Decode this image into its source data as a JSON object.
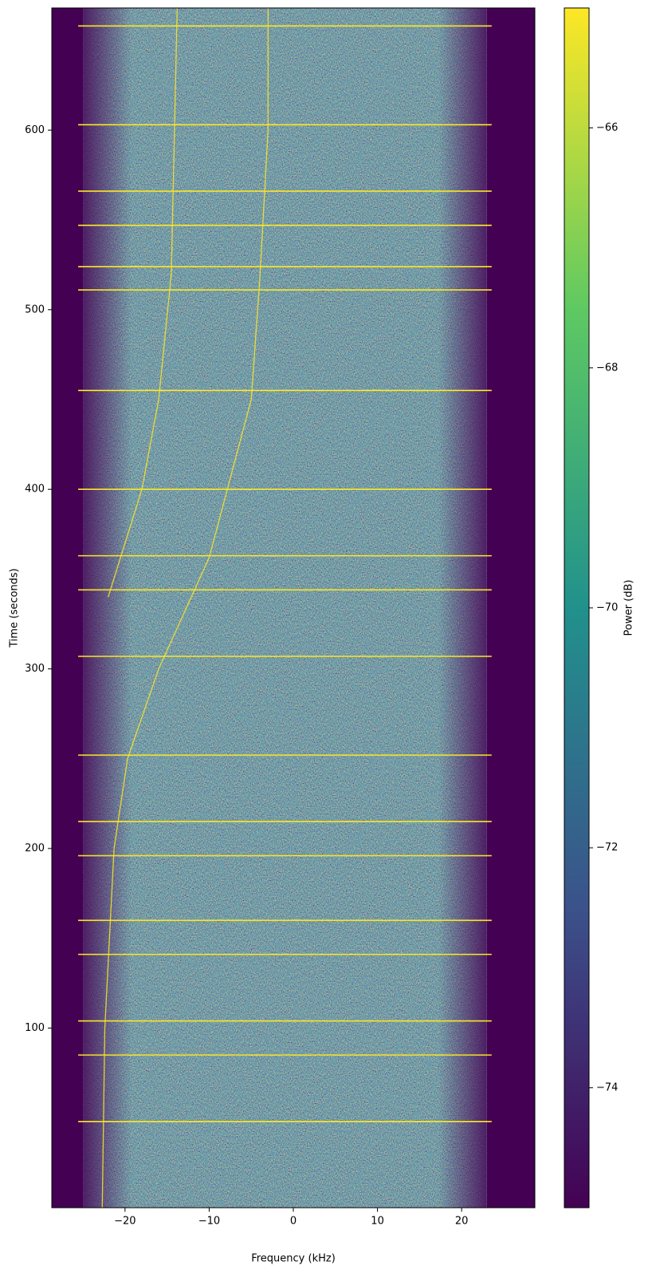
{
  "chart_data": {
    "type": "spectrogram",
    "xlabel": "Frequency (kHz)",
    "ylabel": "Time (seconds)",
    "xlim": [
      -28.7,
      28.7
    ],
    "ylim": [
      0,
      668
    ],
    "xticks": [
      {
        "value": -20,
        "label": "−20"
      },
      {
        "value": -10,
        "label": "−10"
      },
      0,
      10,
      20
    ],
    "yticks": [
      100,
      200,
      300,
      400,
      500,
      600
    ],
    "background_color": "#440154",
    "signal_band": [
      -25,
      23
    ],
    "signal_color": "#fde725",
    "bursts": {
      "times": [
        658,
        603,
        566,
        547,
        524,
        511,
        455,
        400,
        363,
        344,
        307,
        252,
        215,
        196,
        160,
        141,
        104,
        85,
        48
      ]
    },
    "traces": [
      {
        "x": [
          -22.7,
          -22.4,
          -21.3,
          -19.7,
          -16,
          -10,
          -5,
          -4,
          -3,
          -3
        ],
        "y": [
          0,
          100,
          200,
          250,
          300,
          362,
          450,
          516,
          600,
          668
        ]
      },
      {
        "x": [
          -22,
          -18,
          -16,
          -14.5,
          -13.8
        ],
        "y": [
          340,
          400,
          450,
          520,
          668
        ]
      }
    ],
    "colorbar": {
      "label": "Power (dB)",
      "lim": [
        -75,
        -65
      ],
      "ticks": [
        {
          "value": -74,
          "label": "−74"
        },
        {
          "value": -72,
          "label": "−72"
        },
        {
          "value": -70,
          "label": "−70"
        },
        {
          "value": -68,
          "label": "−68"
        },
        {
          "value": -66,
          "label": "−66"
        }
      ],
      "colormap": [
        "#440154",
        "#3b528b",
        "#21918c",
        "#5ec962",
        "#fde725"
      ]
    }
  }
}
